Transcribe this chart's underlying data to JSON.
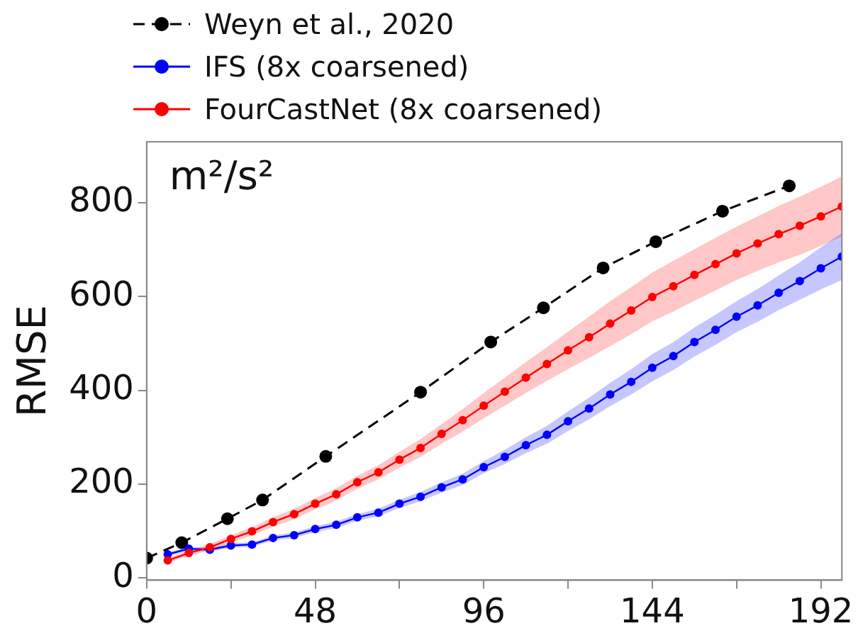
{
  "chart_data": {
    "type": "line",
    "ylabel": "RMSE",
    "annotations": [
      "m²/s²"
    ],
    "xlim": [
      0,
      198
    ],
    "xticks": [
      0,
      {
        "value": 24,
        "label": null
      },
      48,
      {
        "value": 72,
        "label": null
      },
      96,
      {
        "value": 120,
        "label": null
      },
      144,
      {
        "value": 168,
        "label": null
      },
      192
    ],
    "ylim": [
      -5,
      930
    ],
    "yticks": [
      0,
      200,
      400,
      600,
      800
    ],
    "legend": "top",
    "marker": "circle",
    "grid": false,
    "series": [
      {
        "name": "Weyn et al., 2020",
        "color": "#000000",
        "line_style": "dashed",
        "x": [
          0,
          10,
          23,
          33,
          51,
          78,
          98,
          113,
          130,
          145,
          164,
          183
        ],
        "values": [
          42,
          75,
          126,
          166,
          259,
          396,
          503,
          576,
          661,
          717,
          782,
          836
        ]
      },
      {
        "name": "IFS (8x coarsened)",
        "color": "#0000ff",
        "line_style": "solid",
        "x": [
          6,
          12,
          18,
          24,
          30,
          36,
          42,
          48,
          54,
          60,
          66,
          72,
          78,
          84,
          90,
          96,
          102,
          108,
          114,
          120,
          126,
          132,
          138,
          144,
          150,
          156,
          162,
          168,
          174,
          180,
          186,
          192,
          198
        ],
        "values": [
          50,
          62,
          60,
          69,
          71,
          85,
          91,
          104,
          113,
          129,
          139,
          158,
          173,
          193,
          210,
          236,
          258,
          283,
          305,
          334,
          361,
          391,
          418,
          448,
          473,
          503,
          529,
          557,
          581,
          608,
          633,
          660,
          685
        ],
        "lower": [
          46,
          58,
          56,
          64,
          66,
          80,
          85,
          98,
          106,
          122,
          131,
          149,
          163,
          182,
          198,
          223,
          243,
          266,
          286,
          313,
          338,
          366,
          391,
          419,
          443,
          472,
          497,
          524,
          546,
          571,
          593,
          615,
          635
        ],
        "upper": [
          54,
          66,
          64,
          74,
          76,
          90,
          97,
          110,
          120,
          136,
          147,
          167,
          183,
          204,
          222,
          249,
          273,
          300,
          324,
          355,
          384,
          416,
          445,
          477,
          503,
          534,
          561,
          590,
          616,
          645,
          673,
          705,
          735
        ]
      },
      {
        "name": "FourCastNet (8x coarsened)",
        "color": "#ff0000",
        "line_style": "solid",
        "x": [
          6,
          12,
          18,
          24,
          30,
          36,
          42,
          48,
          54,
          60,
          66,
          72,
          78,
          84,
          90,
          96,
          102,
          108,
          114,
          120,
          126,
          132,
          138,
          144,
          150,
          156,
          162,
          168,
          174,
          180,
          186,
          192,
          198
        ],
        "values": [
          37,
          53,
          65,
          83,
          99,
          119,
          136,
          158,
          178,
          204,
          225,
          252,
          277,
          307,
          336,
          367,
          397,
          427,
          456,
          485,
          513,
          542,
          570,
          599,
          622,
          646,
          669,
          692,
          713,
          733,
          751,
          771,
          792
        ],
        "lower": [
          32,
          47,
          58,
          75,
          90,
          109,
          125,
          146,
          165,
          190,
          210,
          235,
          258,
          286,
          312,
          340,
          367,
          394,
          420,
          445,
          469,
          494,
          520,
          547,
          568,
          591,
          613,
          635,
          655,
          673,
          689,
          708,
          728
        ],
        "upper": [
          42,
          59,
          72,
          91,
          108,
          129,
          147,
          170,
          191,
          218,
          240,
          269,
          296,
          328,
          360,
          394,
          427,
          460,
          492,
          525,
          557,
          590,
          620,
          651,
          676,
          701,
          725,
          749,
          771,
          793,
          813,
          834,
          856
        ]
      }
    ]
  }
}
